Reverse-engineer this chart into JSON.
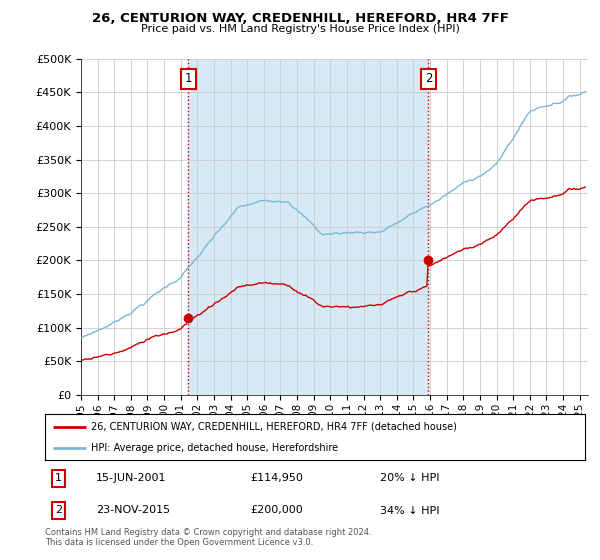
{
  "title": "26, CENTURION WAY, CREDENHILL, HEREFORD, HR4 7FF",
  "subtitle": "Price paid vs. HM Land Registry's House Price Index (HPI)",
  "ylabel_ticks": [
    "£0",
    "£50K",
    "£100K",
    "£150K",
    "£200K",
    "£250K",
    "£300K",
    "£350K",
    "£400K",
    "£450K",
    "£500K"
  ],
  "ytick_values": [
    0,
    50000,
    100000,
    150000,
    200000,
    250000,
    300000,
    350000,
    400000,
    450000,
    500000
  ],
  "ylim": [
    0,
    500000
  ],
  "xlim_start": 1995.0,
  "xlim_end": 2025.5,
  "hpi_color": "#7bb8d4",
  "hpi_fill_color": "#d6e9f5",
  "price_color": "#cc0000",
  "marker1_date": 2001.46,
  "marker1_price": 114950,
  "marker1_label": "1",
  "marker2_date": 2015.9,
  "marker2_price": 200000,
  "marker2_label": "2",
  "legend_line1": "26, CENTURION WAY, CREDENHILL, HEREFORD, HR4 7FF (detached house)",
  "legend_line2": "HPI: Average price, detached house, Herefordshire",
  "footer": "Contains HM Land Registry data © Crown copyright and database right 2024.\nThis data is licensed under the Open Government Licence v3.0.",
  "background_color": "#ffffff",
  "grid_color": "#cccccc"
}
